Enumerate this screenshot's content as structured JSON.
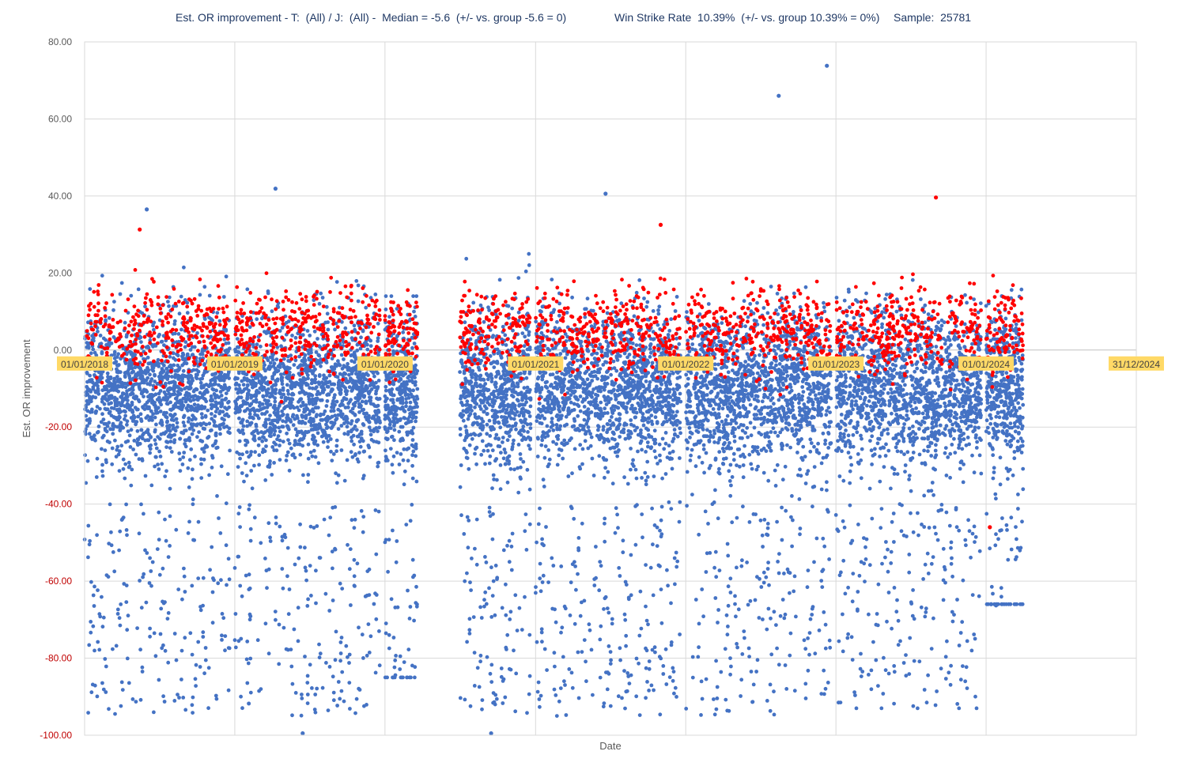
{
  "header": {
    "title_left": "Est. OR improvement - T:  (All) / J:  (All) -  Median = -5.6  (+/- vs. group -5.6 = 0)",
    "title_mid": "Win Strike Rate  10.39%  (+/- vs. group 10.39% = 0%)",
    "title_right": "Sample:  25781"
  },
  "colors": {
    "non_winner": "#4472c4",
    "winner": "#ff0000",
    "grid": "#d9d9d9",
    "zero_line": "#bfbfbf",
    "date_label_bg": "#ffd966",
    "positive_tick": "#595959",
    "negative_tick": "#c00000"
  },
  "chart_data": {
    "type": "scatter",
    "title": "Est. OR improvement - T:  (All) / J:  (All) -  Median = -5.6  (+/- vs. group -5.6 = 0)     Win Strike Rate  10.39%  (+/- vs. group 10.39% = 0%)     Sample:  25781",
    "xlabel": "Date",
    "ylabel": "Est. OR improvement",
    "ylim": [
      -100,
      80
    ],
    "xlim": [
      "01/01/2018",
      "31/12/2024"
    ],
    "y_ticks": [
      "80.00",
      "60.00",
      "40.00",
      "20.00",
      "0.00",
      "-20.00",
      "-40.00",
      "-60.00",
      "-80.00",
      "-100.00"
    ],
    "x_tick_labels": [
      "01/01/2018",
      "01/01/2019",
      "01/01/2020",
      "01/01/2021",
      "01/01/2022",
      "01/01/2023",
      "01/01/2024",
      "31/12/2024"
    ],
    "grid": true,
    "legend": "none",
    "median": -5.6,
    "win_strike_rate_pct": 10.39,
    "sample_size": 25781,
    "point_categories": [
      "non-winner",
      "winner"
    ],
    "density_clusters": [
      {
        "from": "2018-01-01",
        "to": "2018-12-20",
        "y_range": [
          -96,
          42
        ],
        "winner_y_range": [
          -25,
          31
        ]
      },
      {
        "from": "2019-01-01",
        "to": "2019-12-20",
        "y_range": [
          -100,
          42
        ],
        "winner_y_range": [
          -30,
          30
        ]
      },
      {
        "from": "2020-01-01",
        "to": "2020-03-20",
        "y_range": [
          -85,
          22
        ],
        "winner_y_range": [
          -15,
          22
        ]
      },
      {
        "from": "2020-07-01",
        "to": "2020-12-20",
        "y_range": [
          -100,
          33
        ],
        "winner_y_range": [
          -20,
          30
        ]
      },
      {
        "from": "2021-01-01",
        "to": "2021-12-20",
        "y_range": [
          -98,
          41
        ],
        "winner_y_range": [
          -46,
          33
        ]
      },
      {
        "from": "2022-01-01",
        "to": "2022-12-20",
        "y_range": [
          -96,
          74
        ],
        "winner_y_range": [
          -30,
          29
        ]
      },
      {
        "from": "2023-01-01",
        "to": "2023-12-20",
        "y_range": [
          -93,
          40
        ],
        "winner_y_range": [
          -46,
          40
        ]
      },
      {
        "from": "2024-01-01",
        "to": "2024-03-31",
        "y_range": [
          -66,
          29
        ],
        "winner_y_range": [
          -46,
          22
        ]
      }
    ],
    "notable_points": [
      {
        "date": "2018-06-01",
        "y": 36.5,
        "category": "non-winner"
      },
      {
        "date": "2018-05-15",
        "y": 31.3,
        "category": "winner"
      },
      {
        "date": "2019-04-10",
        "y": 41.9,
        "category": "non-winner"
      },
      {
        "date": "2021-06-20",
        "y": 40.6,
        "category": "non-winner"
      },
      {
        "date": "2021-11-01",
        "y": 32.5,
        "category": "winner"
      },
      {
        "date": "2022-08-15",
        "y": 66.0,
        "category": "non-winner"
      },
      {
        "date": "2022-12-10",
        "y": 73.8,
        "category": "non-winner"
      },
      {
        "date": "2023-09-01",
        "y": 39.6,
        "category": "winner"
      },
      {
        "date": "2019-06-15",
        "y": -99.5,
        "category": "non-winner"
      },
      {
        "date": "2020-09-15",
        "y": -99.5,
        "category": "non-winner"
      },
      {
        "date": "2024-01-25",
        "y": -66.3,
        "category": "non-winner"
      },
      {
        "date": "2024-01-10",
        "y": -46.0,
        "category": "winner"
      }
    ]
  }
}
